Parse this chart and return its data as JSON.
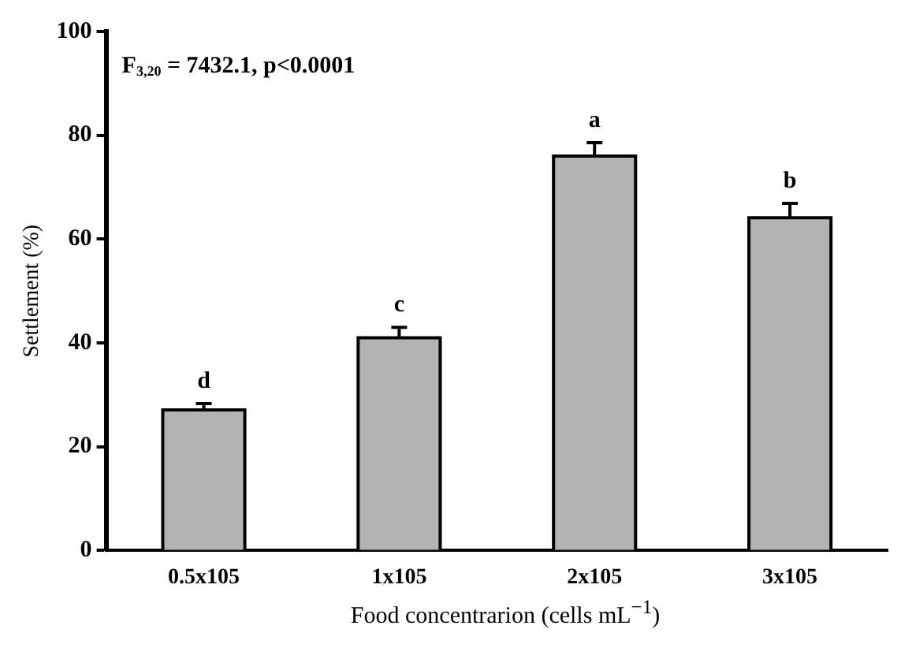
{
  "chart_data": {
    "type": "bar",
    "xlabel": "Food concentrarion (cells mL$^{−1}$)",
    "ylabel": "Settlement (%)",
    "categories": [
      "0.5x105",
      "1x105",
      "2x105",
      "3x105"
    ],
    "values": [
      27.1,
      41.0,
      76.0,
      64.1
    ],
    "errors": [
      1.2,
      2.0,
      2.6,
      2.8
    ],
    "color": "#b3b3b3",
    "ylim": [
      0,
      100
    ],
    "yticks": [
      0,
      20,
      40,
      60,
      80,
      100
    ],
    "grid": false,
    "legend": false,
    "annotations": [
      "F$_{3,20}$ = 7432.1, p<0.0001",
      {
        "text": "d",
        "x": "0.5x105",
        "y": 28.3
      },
      {
        "text": "c",
        "x": "1x105",
        "y": 43.0
      },
      {
        "text": "a",
        "x": "2x105",
        "y": 78.6
      },
      {
        "text": "b",
        "x": "3x105",
        "y": 66.9
      }
    ]
  }
}
